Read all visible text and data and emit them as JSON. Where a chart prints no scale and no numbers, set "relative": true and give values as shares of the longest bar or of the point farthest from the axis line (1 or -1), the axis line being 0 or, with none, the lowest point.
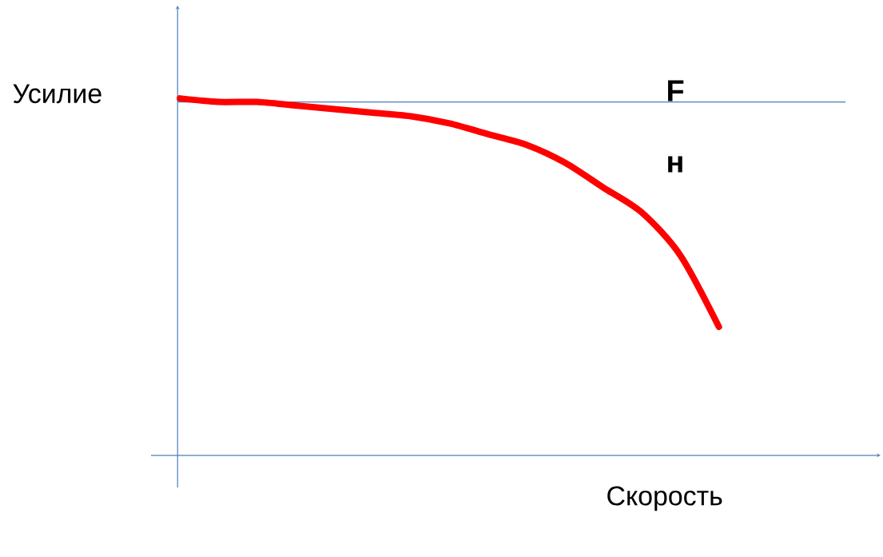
{
  "chart_data": {
    "type": "line",
    "relative": true,
    "xlabel": "Скорость",
    "ylabel": "Усилие",
    "categories": [
      null,
      null,
      null,
      null,
      null,
      null,
      null,
      null,
      null,
      null,
      null,
      null,
      null,
      null,
      null
    ],
    "values": [
      1.0,
      0.99,
      0.99,
      0.98,
      0.97,
      0.96,
      0.95,
      0.93,
      0.9,
      0.87,
      0.82,
      0.75,
      0.68,
      0.56,
      0.36
    ],
    "color": "#ff0000",
    "ref_lines": [
      {
        "axis": "y",
        "value": 0.99,
        "color": "#4a7ebb"
      }
    ],
    "annotations": [
      "F",
      "н"
    ]
  }
}
